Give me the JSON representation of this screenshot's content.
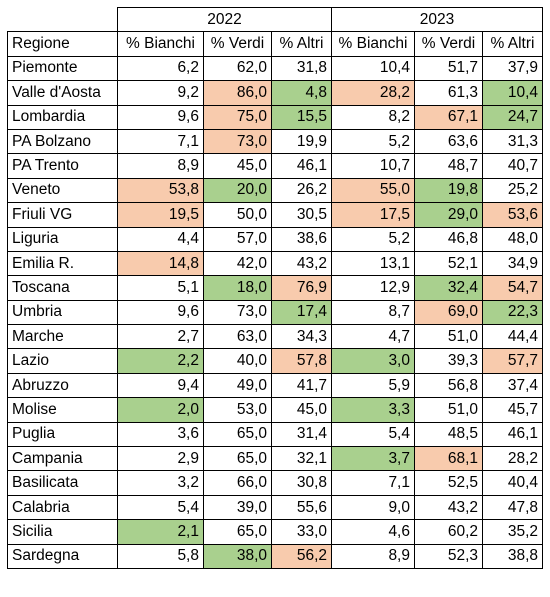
{
  "header": {
    "years": [
      "2022",
      "2023"
    ],
    "region_label": "Regione",
    "columns": [
      "% Bianchi",
      "% Verdi",
      "% Altri",
      "% Bianchi",
      "% Verdi",
      "% Altri"
    ]
  },
  "highlight_colors": {
    "orange": "#f8cbad",
    "green": "#a9d08e"
  },
  "rows": [
    {
      "region": "Piemonte",
      "values": [
        "6,2",
        "62,0",
        "31,8",
        "10,4",
        "51,7",
        "37,9"
      ],
      "colors": [
        "",
        "",
        "",
        "",
        "",
        ""
      ]
    },
    {
      "region": "Valle d'Aosta",
      "values": [
        "9,2",
        "86,0",
        "4,8",
        "28,2",
        "61,3",
        "10,4"
      ],
      "colors": [
        "",
        "orange",
        "green",
        "orange",
        "",
        "green"
      ]
    },
    {
      "region": "Lombardia",
      "values": [
        "9,6",
        "75,0",
        "15,5",
        "8,2",
        "67,1",
        "24,7"
      ],
      "colors": [
        "",
        "orange",
        "green",
        "",
        "orange",
        "green"
      ]
    },
    {
      "region": "PA Bolzano",
      "values": [
        "7,1",
        "73,0",
        "19,9",
        "5,2",
        "63,6",
        "31,3"
      ],
      "colors": [
        "",
        "orange",
        "",
        "",
        "",
        ""
      ]
    },
    {
      "region": "PA Trento",
      "values": [
        "8,9",
        "45,0",
        "46,1",
        "10,7",
        "48,7",
        "40,7"
      ],
      "colors": [
        "",
        "",
        "",
        "",
        "",
        ""
      ]
    },
    {
      "region": "Veneto",
      "values": [
        "53,8",
        "20,0",
        "26,2",
        "55,0",
        "19,8",
        "25,2"
      ],
      "colors": [
        "orange",
        "green",
        "",
        "orange",
        "green",
        ""
      ]
    },
    {
      "region": "Friuli VG",
      "values": [
        "19,5",
        "50,0",
        "30,5",
        "17,5",
        "29,0",
        "53,6"
      ],
      "colors": [
        "orange",
        "",
        "",
        "orange",
        "green",
        "orange"
      ]
    },
    {
      "region": "Liguria",
      "values": [
        "4,4",
        "57,0",
        "38,6",
        "5,2",
        "46,8",
        "48,0"
      ],
      "colors": [
        "",
        "",
        "",
        "",
        "",
        ""
      ]
    },
    {
      "region": "Emilia R.",
      "values": [
        "14,8",
        "42,0",
        "43,2",
        "13,1",
        "52,1",
        "34,9"
      ],
      "colors": [
        "orange",
        "",
        "",
        "",
        "",
        ""
      ]
    },
    {
      "region": "Toscana",
      "values": [
        "5,1",
        "18,0",
        "76,9",
        "12,9",
        "32,4",
        "54,7"
      ],
      "colors": [
        "",
        "green",
        "orange",
        "",
        "green",
        "orange"
      ]
    },
    {
      "region": "Umbria",
      "values": [
        "9,6",
        "73,0",
        "17,4",
        "8,7",
        "69,0",
        "22,3"
      ],
      "colors": [
        "",
        "",
        "green",
        "",
        "orange",
        "green"
      ]
    },
    {
      "region": "Marche",
      "values": [
        "2,7",
        "63,0",
        "34,3",
        "4,7",
        "51,0",
        "44,4"
      ],
      "colors": [
        "",
        "",
        "",
        "",
        "",
        ""
      ]
    },
    {
      "region": "Lazio",
      "values": [
        "2,2",
        "40,0",
        "57,8",
        "3,0",
        "39,3",
        "57,7"
      ],
      "colors": [
        "green",
        "",
        "orange",
        "green",
        "",
        "orange"
      ]
    },
    {
      "region": "Abruzzo",
      "values": [
        "9,4",
        "49,0",
        "41,7",
        "5,9",
        "56,8",
        "37,4"
      ],
      "colors": [
        "",
        "",
        "",
        "",
        "",
        ""
      ]
    },
    {
      "region": "Molise",
      "values": [
        "2,0",
        "53,0",
        "45,0",
        "3,3",
        "51,0",
        "45,7"
      ],
      "colors": [
        "green",
        "",
        "",
        "green",
        "",
        ""
      ]
    },
    {
      "region": "Puglia",
      "values": [
        "3,6",
        "65,0",
        "31,4",
        "5,4",
        "48,5",
        "46,1"
      ],
      "colors": [
        "",
        "",
        "",
        "",
        "",
        ""
      ]
    },
    {
      "region": "Campania",
      "values": [
        "2,9",
        "65,0",
        "32,1",
        "3,7",
        "68,1",
        "28,2"
      ],
      "colors": [
        "",
        "",
        "",
        "green",
        "orange",
        ""
      ]
    },
    {
      "region": "Basilicata",
      "values": [
        "3,2",
        "66,0",
        "30,8",
        "7,1",
        "52,5",
        "40,4"
      ],
      "colors": [
        "",
        "",
        "",
        "",
        "",
        ""
      ]
    },
    {
      "region": "Calabria",
      "values": [
        "5,4",
        "39,0",
        "55,6",
        "9,0",
        "43,2",
        "47,8"
      ],
      "colors": [
        "",
        "",
        "",
        "",
        "",
        ""
      ]
    },
    {
      "region": "Sicilia",
      "values": [
        "2,1",
        "65,0",
        "33,0",
        "4,6",
        "60,2",
        "35,2"
      ],
      "colors": [
        "green",
        "",
        "",
        "",
        "",
        ""
      ]
    },
    {
      "region": "Sardegna",
      "values": [
        "5,8",
        "38,0",
        "56,2",
        "8,9",
        "52,3",
        "38,8"
      ],
      "colors": [
        "",
        "green",
        "orange",
        "",
        "",
        ""
      ]
    }
  ]
}
